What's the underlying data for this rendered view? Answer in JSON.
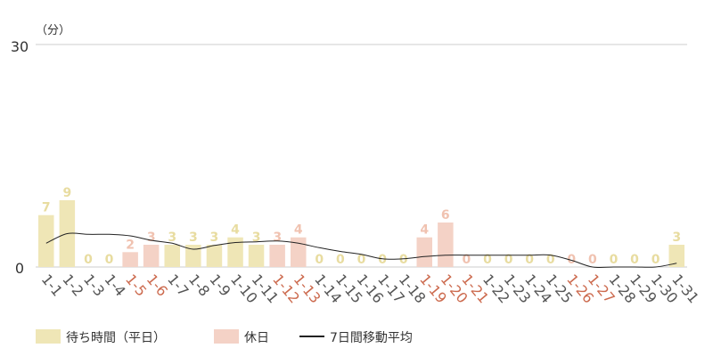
{
  "colors": {
    "weekday": "#efe6b6",
    "holiday": "#f4d2c6",
    "weekday_label": "#e8dca0",
    "holiday_label": "#f0c2b0",
    "weekday_tick": "#555555",
    "holiday_tick": "#cc6a4e",
    "line": "#222222",
    "grid": "#cccccc"
  },
  "chart_data": {
    "type": "bar",
    "unit_label": "（分）",
    "ylim": [
      0,
      30
    ],
    "yticks": [
      "0",
      "30"
    ],
    "categories": [
      "1-1",
      "1-2",
      "1-3",
      "1-4",
      "1-5",
      "1-6",
      "1-7",
      "1-8",
      "1-9",
      "1-10",
      "1-11",
      "1-12",
      "1-13",
      "1-14",
      "1-15",
      "1-16",
      "1-17",
      "1-18",
      "1-19",
      "1-20",
      "1-21",
      "1-22",
      "1-23",
      "1-24",
      "1-25",
      "1-26",
      "1-27",
      "1-28",
      "1-29",
      "1-30",
      "1-31"
    ],
    "holiday": [
      false,
      false,
      false,
      false,
      true,
      true,
      false,
      false,
      false,
      false,
      false,
      true,
      true,
      false,
      false,
      false,
      false,
      false,
      true,
      true,
      true,
      false,
      false,
      false,
      false,
      true,
      true,
      false,
      false,
      false,
      false
    ],
    "values": [
      7,
      9,
      0,
      0,
      2,
      3,
      3,
      3,
      3,
      4,
      3,
      3,
      4,
      0,
      0,
      0,
      0,
      0,
      4,
      6,
      0,
      0,
      0,
      0,
      0,
      0,
      0,
      0,
      0,
      0,
      3
    ],
    "data_labels": [
      "7",
      "9",
      "0",
      "0",
      "2",
      "3",
      "3",
      "3",
      "3",
      "4",
      "3",
      "3",
      "4",
      "0",
      "0",
      "0",
      "0",
      "0",
      "4",
      "6",
      "0",
      "0",
      "0",
      "0",
      "0",
      "0",
      "0",
      "0",
      "0",
      "0",
      "3"
    ],
    "moving_average": [
      3.2,
      4.5,
      4.4,
      4.4,
      4.2,
      3.6,
      3.2,
      2.4,
      2.9,
      3.3,
      3.4,
      3.5,
      3.2,
      2.6,
      2.1,
      1.7,
      1.1,
      1.1,
      1.4,
      1.6,
      1.6,
      1.6,
      1.6,
      1.6,
      1.6,
      0.9,
      0.0,
      0.0,
      0.0,
      0.0,
      0.5
    ],
    "legend": [
      {
        "label": "待ち時間（平日）",
        "kind": "weekday"
      },
      {
        "label": "休日",
        "kind": "holiday"
      },
      {
        "label": "7日間移動平均",
        "kind": "line"
      }
    ]
  }
}
